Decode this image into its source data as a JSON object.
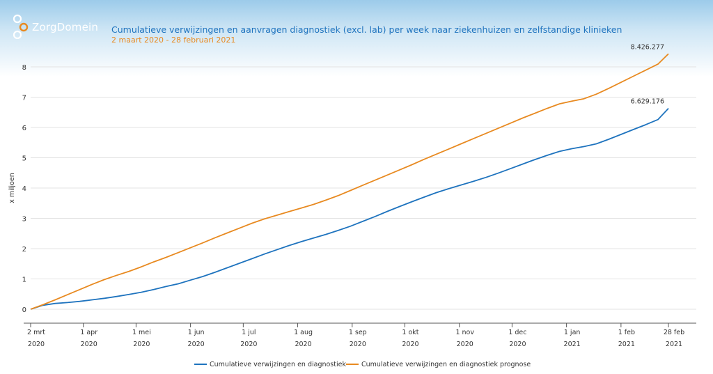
{
  "brand": {
    "name": "ZorgDomein",
    "icon": "zorgdomein-logo-icon",
    "text_color": "#ffffff",
    "accent": "#e88a21"
  },
  "header": {
    "title": "Cumulatieve verwijzingen en aanvragen diagnostiek (excl. lab) per week naar ziekenhuizen en zelfstandige klinieken",
    "subtitle": "2 maart 2020 - 28 februari 2021"
  },
  "chart_data": {
    "type": "line",
    "title": "Cumulatieve verwijzingen en aanvragen diagnostiek (excl. lab) per week naar ziekenhuizen en zelfstandige klinieken",
    "subtitle": "2 maart 2020 - 28 februari 2021",
    "xlabel": "",
    "ylabel": "x miljoen",
    "ylim": [
      0,
      8
    ],
    "yticks": [
      0,
      1,
      2,
      3,
      4,
      5,
      6,
      7,
      8
    ],
    "grid": true,
    "legend": "bottom",
    "x_range": [
      "2020-03-02",
      "2021-02-28"
    ],
    "x_ticks": [
      {
        "date": "2020-03-02",
        "label1": "2 mrt",
        "label2": "2020"
      },
      {
        "date": "2020-04-01",
        "label1": "1 apr",
        "label2": "2020"
      },
      {
        "date": "2020-05-01",
        "label1": "1 mei",
        "label2": "2020"
      },
      {
        "date": "2020-06-01",
        "label1": "1 jun",
        "label2": "2020"
      },
      {
        "date": "2020-07-01",
        "label1": "1 jul",
        "label2": "2020"
      },
      {
        "date": "2020-08-01",
        "label1": "1 aug",
        "label2": "2020"
      },
      {
        "date": "2020-09-01",
        "label1": "1 sep",
        "label2": "2020"
      },
      {
        "date": "2020-10-01",
        "label1": "1 okt",
        "label2": "2020"
      },
      {
        "date": "2020-11-01",
        "label1": "1 nov",
        "label2": "2020"
      },
      {
        "date": "2020-12-01",
        "label1": "1 dec",
        "label2": "2020"
      },
      {
        "date": "2021-01-01",
        "label1": "1 jan",
        "label2": "2021"
      },
      {
        "date": "2021-02-01",
        "label1": "1 feb",
        "label2": "2021"
      },
      {
        "date": "2021-02-28",
        "label1": "28 feb",
        "label2": "2021"
      }
    ],
    "series": [
      {
        "name": "Cumulatieve verwijzingen en diagnostiek",
        "color": "#1e73be",
        "end_label": "6.629.176",
        "points": [
          [
            "2020-03-02",
            0
          ],
          [
            "2020-03-09",
            0.13
          ],
          [
            "2020-03-16",
            0.19
          ],
          [
            "2020-03-23",
            0.22
          ],
          [
            "2020-03-30",
            0.26
          ],
          [
            "2020-04-06",
            0.31
          ],
          [
            "2020-04-13",
            0.36
          ],
          [
            "2020-04-20",
            0.42
          ],
          [
            "2020-04-27",
            0.49
          ],
          [
            "2020-05-04",
            0.56
          ],
          [
            "2020-05-11",
            0.65
          ],
          [
            "2020-05-18",
            0.75
          ],
          [
            "2020-05-25",
            0.84
          ],
          [
            "2020-06-01",
            0.96
          ],
          [
            "2020-06-08",
            1.08
          ],
          [
            "2020-06-15",
            1.22
          ],
          [
            "2020-06-22",
            1.37
          ],
          [
            "2020-06-29",
            1.52
          ],
          [
            "2020-07-06",
            1.67
          ],
          [
            "2020-07-13",
            1.82
          ],
          [
            "2020-07-20",
            1.96
          ],
          [
            "2020-07-27",
            2.1
          ],
          [
            "2020-08-03",
            2.23
          ],
          [
            "2020-08-10",
            2.35
          ],
          [
            "2020-08-17",
            2.47
          ],
          [
            "2020-08-24",
            2.6
          ],
          [
            "2020-08-31",
            2.74
          ],
          [
            "2020-09-07",
            2.9
          ],
          [
            "2020-09-14",
            3.06
          ],
          [
            "2020-09-21",
            3.23
          ],
          [
            "2020-09-28",
            3.39
          ],
          [
            "2020-10-05",
            3.55
          ],
          [
            "2020-10-12",
            3.7
          ],
          [
            "2020-10-19",
            3.85
          ],
          [
            "2020-10-26",
            3.98
          ],
          [
            "2020-11-02",
            4.1
          ],
          [
            "2020-11-09",
            4.22
          ],
          [
            "2020-11-16",
            4.35
          ],
          [
            "2020-11-23",
            4.49
          ],
          [
            "2020-11-30",
            4.64
          ],
          [
            "2020-12-07",
            4.79
          ],
          [
            "2020-12-14",
            4.94
          ],
          [
            "2020-12-21",
            5.08
          ],
          [
            "2020-12-28",
            5.21
          ],
          [
            "2021-01-04",
            5.3
          ],
          [
            "2021-01-11",
            5.37
          ],
          [
            "2021-01-18",
            5.46
          ],
          [
            "2021-01-25",
            5.61
          ],
          [
            "2021-02-01",
            5.77
          ],
          [
            "2021-02-08",
            5.93
          ],
          [
            "2021-02-15",
            6.09
          ],
          [
            "2021-02-22",
            6.26
          ],
          [
            "2021-02-28",
            6.63
          ]
        ]
      },
      {
        "name": "Cumulatieve verwijzingen en diagnostiek prognose",
        "color": "#e88a21",
        "end_label": "8.426.277",
        "points": [
          [
            "2020-03-02",
            0
          ],
          [
            "2020-03-09",
            0.15
          ],
          [
            "2020-03-16",
            0.31
          ],
          [
            "2020-03-23",
            0.48
          ],
          [
            "2020-03-30",
            0.65
          ],
          [
            "2020-04-06",
            0.82
          ],
          [
            "2020-04-13",
            0.98
          ],
          [
            "2020-04-20",
            1.12
          ],
          [
            "2020-04-27",
            1.25
          ],
          [
            "2020-05-04",
            1.4
          ],
          [
            "2020-05-11",
            1.56
          ],
          [
            "2020-05-18",
            1.71
          ],
          [
            "2020-05-25",
            1.87
          ],
          [
            "2020-06-01",
            2.03
          ],
          [
            "2020-06-08",
            2.19
          ],
          [
            "2020-06-15",
            2.36
          ],
          [
            "2020-06-22",
            2.52
          ],
          [
            "2020-06-29",
            2.68
          ],
          [
            "2020-07-06",
            2.84
          ],
          [
            "2020-07-13",
            2.98
          ],
          [
            "2020-07-20",
            3.1
          ],
          [
            "2020-07-27",
            3.22
          ],
          [
            "2020-08-03",
            3.34
          ],
          [
            "2020-08-10",
            3.46
          ],
          [
            "2020-08-17",
            3.6
          ],
          [
            "2020-08-24",
            3.75
          ],
          [
            "2020-08-31",
            3.92
          ],
          [
            "2020-09-07",
            4.09
          ],
          [
            "2020-09-14",
            4.26
          ],
          [
            "2020-09-21",
            4.43
          ],
          [
            "2020-09-28",
            4.6
          ],
          [
            "2020-10-05",
            4.77
          ],
          [
            "2020-10-12",
            4.95
          ],
          [
            "2020-10-19",
            5.12
          ],
          [
            "2020-10-26",
            5.29
          ],
          [
            "2020-11-02",
            5.46
          ],
          [
            "2020-11-09",
            5.63
          ],
          [
            "2020-11-16",
            5.8
          ],
          [
            "2020-11-23",
            5.97
          ],
          [
            "2020-11-30",
            6.14
          ],
          [
            "2020-12-07",
            6.31
          ],
          [
            "2020-12-14",
            6.47
          ],
          [
            "2020-12-21",
            6.63
          ],
          [
            "2020-12-28",
            6.78
          ],
          [
            "2021-01-04",
            6.87
          ],
          [
            "2021-01-11",
            6.95
          ],
          [
            "2021-01-18",
            7.1
          ],
          [
            "2021-01-25",
            7.29
          ],
          [
            "2021-02-01",
            7.49
          ],
          [
            "2021-02-08",
            7.69
          ],
          [
            "2021-02-15",
            7.89
          ],
          [
            "2021-02-22",
            8.09
          ],
          [
            "2021-02-28",
            8.43
          ]
        ]
      }
    ]
  }
}
